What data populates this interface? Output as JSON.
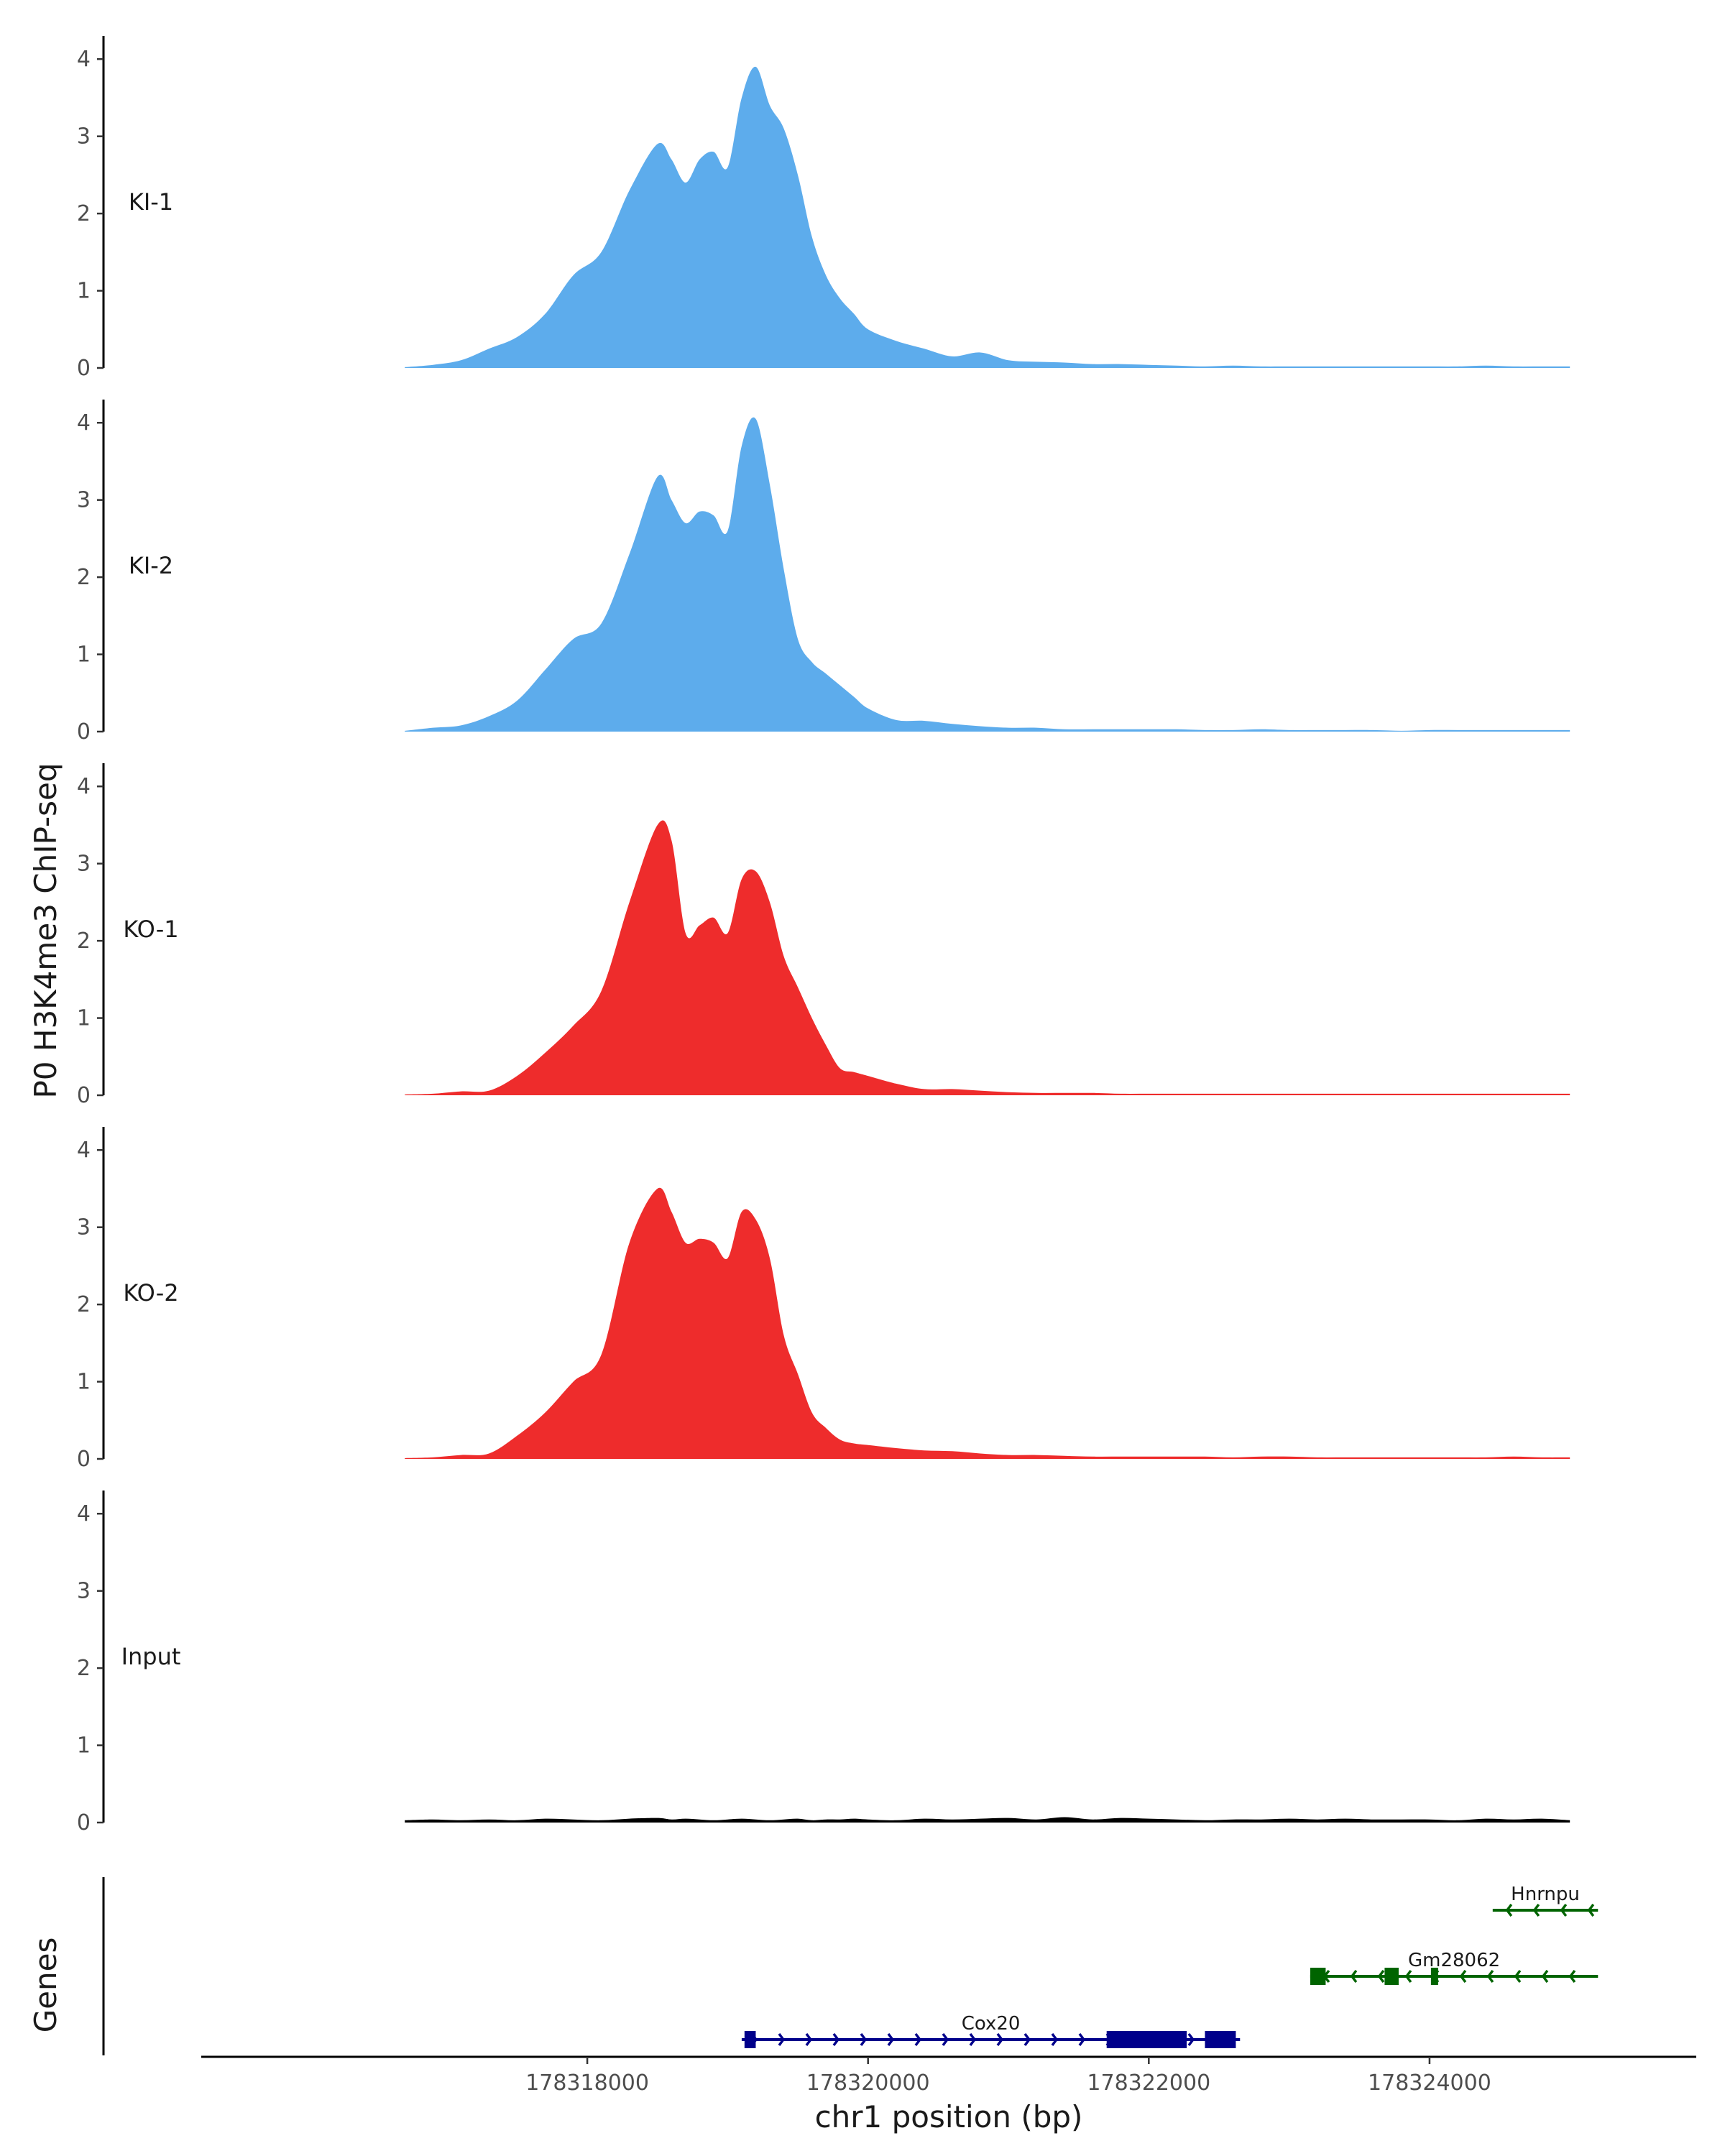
{
  "chart_data": {
    "type": "area",
    "ylabel": "P0 H3K4me3 ChIP-seq",
    "xlabel": "chr1 position (bp)",
    "xlim": [
      178315250,
      178325900
    ],
    "ylim": [
      0,
      4.3
    ],
    "y_ticks": [
      "0",
      "1",
      "2",
      "3",
      "4"
    ],
    "x_ticks": [
      {
        "value": 178318000,
        "label": "178318000"
      },
      {
        "value": 178320000,
        "label": "178320000"
      },
      {
        "value": 178322000,
        "label": "178322000"
      },
      {
        "value": 178324000,
        "label": "178324000"
      }
    ],
    "x": [
      178316700,
      178316900,
      178317100,
      178317300,
      178317500,
      178317700,
      178317900,
      178318100,
      178318300,
      178318500,
      178318600,
      178318700,
      178318800,
      178318900,
      178319000,
      178319100,
      178319200,
      178319300,
      178319400,
      178319500,
      178319600,
      178319700,
      178319800,
      178319900,
      178320000,
      178320200,
      178320400,
      178320600,
      178320800,
      178321000,
      178321200,
      178321400,
      178321600,
      178321800,
      178322000,
      178322200,
      178322400,
      178322600,
      178322800,
      178323000,
      178323200,
      178323400,
      178323600,
      178323800,
      178324000,
      178324200,
      178324400,
      178324600,
      178324800,
      178325000
    ],
    "series": [
      {
        "name": "KI-1",
        "color": "#5dacec",
        "values": [
          0.01,
          0.04,
          0.1,
          0.25,
          0.4,
          0.7,
          1.2,
          1.5,
          2.3,
          2.9,
          2.7,
          2.4,
          2.7,
          2.8,
          2.6,
          3.5,
          3.9,
          3.4,
          3.1,
          2.5,
          1.7,
          1.2,
          0.9,
          0.7,
          0.5,
          0.35,
          0.25,
          0.15,
          0.2,
          0.1,
          0.08,
          0.07,
          0.05,
          0.05,
          0.04,
          0.03,
          0.02,
          0.03,
          0.02,
          0.02,
          0.02,
          0.02,
          0.02,
          0.02,
          0.02,
          0.02,
          0.03,
          0.02,
          0.02,
          0.02
        ]
      },
      {
        "name": "KI-2",
        "color": "#5dacec",
        "values": [
          0.01,
          0.05,
          0.08,
          0.2,
          0.4,
          0.8,
          1.2,
          1.4,
          2.3,
          3.3,
          3.0,
          2.7,
          2.85,
          2.8,
          2.6,
          3.7,
          4.05,
          3.2,
          2.1,
          1.2,
          0.9,
          0.75,
          0.6,
          0.45,
          0.3,
          0.15,
          0.14,
          0.1,
          0.07,
          0.05,
          0.05,
          0.03,
          0.03,
          0.03,
          0.03,
          0.03,
          0.02,
          0.02,
          0.03,
          0.02,
          0.02,
          0.02,
          0.02,
          0.01,
          0.02,
          0.02,
          0.02,
          0.02,
          0.02,
          0.02
        ]
      },
      {
        "name": "KO-1",
        "color": "#ee2c2c",
        "values": [
          0.01,
          0.02,
          0.05,
          0.06,
          0.25,
          0.55,
          0.9,
          1.35,
          2.5,
          3.5,
          3.3,
          2.1,
          2.2,
          2.3,
          2.1,
          2.8,
          2.9,
          2.5,
          1.8,
          1.4,
          1.0,
          0.65,
          0.35,
          0.3,
          0.25,
          0.15,
          0.08,
          0.08,
          0.06,
          0.04,
          0.03,
          0.03,
          0.03,
          0.02,
          0.02,
          0.02,
          0.02,
          0.02,
          0.02,
          0.02,
          0.02,
          0.02,
          0.02,
          0.02,
          0.02,
          0.02,
          0.02,
          0.02,
          0.02,
          0.02
        ]
      },
      {
        "name": "KO-2",
        "color": "#ee2c2c",
        "values": [
          0.01,
          0.02,
          0.05,
          0.07,
          0.3,
          0.6,
          1.0,
          1.35,
          2.8,
          3.5,
          3.2,
          2.8,
          2.85,
          2.8,
          2.6,
          3.2,
          3.1,
          2.6,
          1.6,
          1.1,
          0.6,
          0.4,
          0.25,
          0.2,
          0.18,
          0.14,
          0.11,
          0.1,
          0.07,
          0.05,
          0.05,
          0.04,
          0.03,
          0.03,
          0.03,
          0.03,
          0.03,
          0.02,
          0.03,
          0.03,
          0.02,
          0.02,
          0.02,
          0.02,
          0.02,
          0.02,
          0.02,
          0.03,
          0.02,
          0.02
        ]
      },
      {
        "name": "Input",
        "color": "#000000",
        "values": [
          0.03,
          0.04,
          0.03,
          0.04,
          0.03,
          0.05,
          0.04,
          0.03,
          0.05,
          0.06,
          0.04,
          0.05,
          0.04,
          0.03,
          0.04,
          0.05,
          0.04,
          0.03,
          0.04,
          0.05,
          0.03,
          0.04,
          0.04,
          0.05,
          0.04,
          0.03,
          0.05,
          0.04,
          0.05,
          0.06,
          0.04,
          0.07,
          0.04,
          0.06,
          0.05,
          0.04,
          0.03,
          0.04,
          0.04,
          0.05,
          0.04,
          0.05,
          0.04,
          0.04,
          0.04,
          0.03,
          0.05,
          0.04,
          0.05,
          0.03
        ]
      }
    ],
    "genes_track": {
      "title": "Genes",
      "genes": [
        {
          "name": "Cox20",
          "strand": "+",
          "color": "#00008b",
          "start": 178319100,
          "end": 178322650,
          "exons": [
            [
              178319120,
              178319200
            ],
            [
              178321700,
              178322270
            ],
            [
              178322400,
              178322620
            ]
          ]
        },
        {
          "name": "Gm28062",
          "strand": "-",
          "color": "#006400",
          "start": 178323150,
          "end": 178325200,
          "exons": [
            [
              178323150,
              178323260
            ],
            [
              178323680,
              178323780
            ],
            [
              178324010,
              178324060
            ]
          ]
        },
        {
          "name": "Hnrnpu",
          "strand": "-",
          "color": "#006400",
          "start": 178324450,
          "end": 178325200,
          "exons": []
        }
      ]
    }
  }
}
